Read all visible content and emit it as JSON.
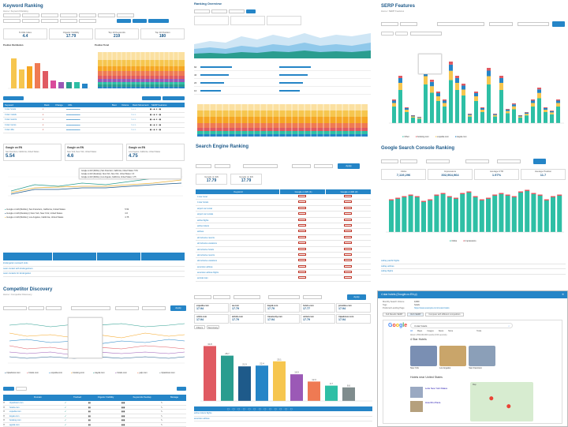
{
  "keyword_ranking": {
    "title": "Keyword Ranking",
    "breadcrumb": "Home / Keyword Ranking",
    "kpis": [
      {
        "label": "% Kills Index",
        "value": "4.4"
      },
      {
        "label": "Organic Visibility",
        "value": "17.79"
      },
      {
        "label": "Top 10 Keywords",
        "value": "219"
      },
      {
        "label": "Top 10 Position",
        "value": "180"
      }
    ],
    "position_dist": "Position Distribution",
    "position_trend": "Position Trend",
    "keywords_header": [
      "Keyword",
      "Rank",
      "Change",
      "URL",
      "Best",
      "Volume",
      "Rank Movement",
      "SERP Features"
    ],
    "keywords": [
      "4 star hotels",
      "4 star motels",
      "4 star resorts",
      "4 star rooms",
      "4 star villa"
    ],
    "locations": [
      {
        "title": "Google on EN",
        "place": "San Francisco, California, United States",
        "value": "5.54"
      },
      {
        "title": "Google on EN",
        "place": "New York, New York, United States",
        "value": "4.6"
      },
      {
        "title": "Google on EN",
        "place": "Los Angeles, California, United States",
        "value": "4.75"
      }
    ],
    "tooltip": [
      "Google on EN (Mobile) | San Francisco, California, United States: 5.54",
      "Google on EN (Desktop) | New York, New York, United States: 4.6",
      "Google on EN (Mobile) | Los Angeles, California, United States: 4.75"
    ],
    "legend": [
      "Google on EN (Mobile) | San Francisco, California, United States",
      "Google on EN (Desktop) | New York, New York, United States",
      "Google on EN (Mobile) | Los Angeles, California, United States"
    ],
    "legend_vals": [
      "5.54",
      "4.6",
      "4.75"
    ],
    "compare_rows": [
      "kindergarten outreach tools",
      "outer contact with kindergartners",
      "outer contacts for kindergarten"
    ]
  },
  "competitor": {
    "title": "Competitor Discovery",
    "breadcrumb": "Home / Competitor Discovery",
    "apply": "Apply",
    "legend": [
      "tripadvisor.com",
      "hotels.com",
      "expedia.com",
      "booking.com",
      "kayak.com",
      "hotels.com",
      "yelp.com",
      "tripadvisor.com"
    ],
    "table_header": [
      "Domain",
      "Tracked",
      "Organic Visibility",
      "Keywords Overlap",
      "Manage"
    ],
    "domains": [
      "tripadvisor.com",
      "hotels.com",
      "expedia.com",
      "kayak.com",
      "booking.com",
      "agoda.com"
    ]
  },
  "ranking_overview": {
    "title": "Ranking Overview"
  },
  "search_engine_ranking": {
    "title": "Search Engine Ranking",
    "apply": "Apply",
    "kpis": [
      {
        "label": "Google on EN",
        "value": "17.79"
      },
      {
        "label": "Google on EN",
        "value": "17.79"
      }
    ],
    "table_header": [
      "Keyword",
      "Google on EN (1)",
      "Google on EN (2)"
    ],
    "keywords": [
      "4 star hotel",
      "4 star hotels",
      "airport car rental",
      "airport car rentals",
      "airline flights",
      "airline tickets",
      "airlines",
      "all inclusive resorts",
      "all inclusive vacations",
      "all-inclusive hotels",
      "all-inclusive resorts",
      "all-inclusive vacations",
      "american airlines",
      "american airlines flights",
      "amtrak train"
    ]
  },
  "serp_features": {
    "title": "SERP Features",
    "breadcrumb": "Home / SERP Features",
    "legend": [
      "Other",
      "booking.com",
      "expedia.com",
      "kayak.com"
    ]
  },
  "gsc": {
    "title": "Google Search Console Ranking",
    "kpis": [
      {
        "label": "Clicks",
        "value": "7,119,296"
      },
      {
        "label": "Impressions",
        "value": "302,964,964"
      },
      {
        "label": "Average CTR",
        "value": "1.97%"
      },
      {
        "label": "Average Position",
        "value": "11.7"
      }
    ],
    "legend": [
      "Clicks",
      "Impressions"
    ],
    "rows": [
      "cathay pacific flights",
      "cathay airlines",
      "cathay flights"
    ]
  },
  "serp_detail": {
    "domains": [
      {
        "name": "expedia.com",
        "value": "17.94"
      },
      {
        "name": "aa.com",
        "value": "17.79"
      },
      {
        "name": "kayak.com",
        "value": "17.79"
      },
      {
        "name": "hotels.com",
        "value": "17.77"
      },
      {
        "name": "priceline.com",
        "value": "17.94"
      }
    ],
    "domains2": [
      {
        "name": "orbitz.com",
        "value": "17.94"
      },
      {
        "name": "airbnb.com",
        "value": "17.79"
      },
      {
        "name": "travelocity.com",
        "value": "17.94"
      },
      {
        "name": "united.com",
        "value": "17.79"
      },
      {
        "name": "tripadvisor.com",
        "value": "17.94"
      }
    ],
    "tabs": [
      "Filters",
      "Summary"
    ],
    "bar_labels": [
      "34.8",
      "28.7",
      "21.9",
      "22.4",
      "25.1",
      "16.9",
      "12.3",
      "9.7",
      "8.6"
    ],
    "rows": [
      "airline tickets flights",
      "american airlines"
    ],
    "apply": "Apply"
  },
  "google_snapshot": {
    "window_title": "4 star hotels (Google.co.EN.p)",
    "meta": [
      {
        "k": "Monthly Search Volume",
        "v": "9,900"
      },
      {
        "k": "Tags",
        "v": "hotels"
      },
      {
        "k": "Preferred Landing Page",
        "v": "https://www.example.com/4-star-hotels"
      }
    ],
    "pills": [
      "Full Results SERP",
      "Rich SERP",
      "Compare with different competitors"
    ],
    "query": "4 star hotels",
    "tabs": [
      "All",
      "Maps",
      "Images",
      "News",
      "More"
    ],
    "tools": "Tools",
    "stats": "About 1,560,000,000 results (0.60 seconds)",
    "section1": "4 Star Hotels",
    "section2": "Hotels near United States",
    "hotels": [
      {
        "name": "New York",
        "color": "#7a8fb3"
      },
      {
        "name": "Los Angeles",
        "color": "#c9a56a"
      },
      {
        "name": "San Francisco",
        "color": "#8b9fb8"
      }
    ],
    "places": [
      {
        "name": "Lotte New York Palace"
      },
      {
        "name": "Hotel Riu Plaza"
      }
    ],
    "map_label": "Map"
  }
}
